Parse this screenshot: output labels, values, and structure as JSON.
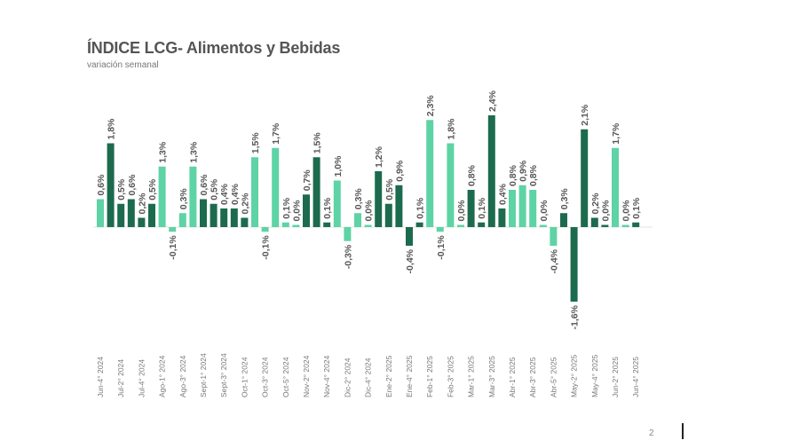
{
  "chart_data": {
    "type": "bar",
    "title": "ÍNDICE LCG- Alimentos y Bebidas",
    "subtitle": "variación semanal",
    "tick_labels": [
      "Jun-4° 2024",
      "Jul-2° 2024",
      "Jul-4° 2024",
      "Ago-1° 2024",
      "Ago-3° 2024",
      "Sept-1° 2024",
      "Sept-3° 2024",
      "Oct-1° 2024",
      "Oct-3° 2024",
      "Oct-5° 2024",
      "Nov-2° 2024",
      "Nov-4° 2024",
      "Dic-2° 2024",
      "Dic-4° 2024",
      "Ene-2° 2025",
      "Ene-4° 2025",
      "Feb-1° 2025",
      "Feb-3° 2025",
      "Mar-1° 2025",
      "Mar-3° 2025",
      "Abr-1° 2025",
      "Abr-3° 2025",
      "Abr-5° 2025",
      "May-2° 2025",
      "May-4° 2025",
      "Jun-2° 2025",
      "Jun-4° 2025"
    ],
    "tick_every": 2,
    "values": [
      0.6,
      1.8,
      0.5,
      0.6,
      0.2,
      0.5,
      1.3,
      -0.1,
      0.3,
      1.3,
      0.6,
      0.5,
      0.4,
      0.4,
      0.2,
      1.5,
      -0.1,
      1.7,
      0.1,
      0.0,
      0.7,
      1.5,
      0.1,
      1.0,
      -0.3,
      0.3,
      0.0,
      1.2,
      0.5,
      0.9,
      -0.4,
      0.1,
      2.3,
      -0.1,
      1.8,
      0.0,
      0.8,
      0.1,
      2.4,
      0.4,
      0.8,
      0.9,
      0.8,
      0.0,
      -0.4,
      0.3,
      -1.6,
      2.1,
      0.2,
      0.0,
      1.7,
      0.0,
      0.1
    ],
    "bar_shade": [
      "light",
      "dark",
      "dark",
      "dark",
      "dark",
      "dark",
      "light",
      "light",
      "light",
      "light",
      "dark",
      "dark",
      "dark",
      "dark",
      "dark",
      "light",
      "light",
      "light",
      "light",
      "light",
      "dark",
      "dark",
      "dark",
      "light",
      "light",
      "light",
      "light",
      "dark",
      "dark",
      "dark",
      "dark",
      "dark",
      "light",
      "light",
      "light",
      "light",
      "dark",
      "dark",
      "dark",
      "dark",
      "light",
      "light",
      "light",
      "light",
      "light",
      "dark",
      "dark",
      "dark",
      "dark",
      "dark",
      "light",
      "light",
      "dark"
    ],
    "colors": {
      "light": "#5ed3a6",
      "dark": "#1d6b4e"
    },
    "value_format": "percent with comma decimal",
    "ylim": [
      -1.6,
      2.4
    ],
    "grid": false,
    "legend": "none"
  },
  "page_number": "2"
}
